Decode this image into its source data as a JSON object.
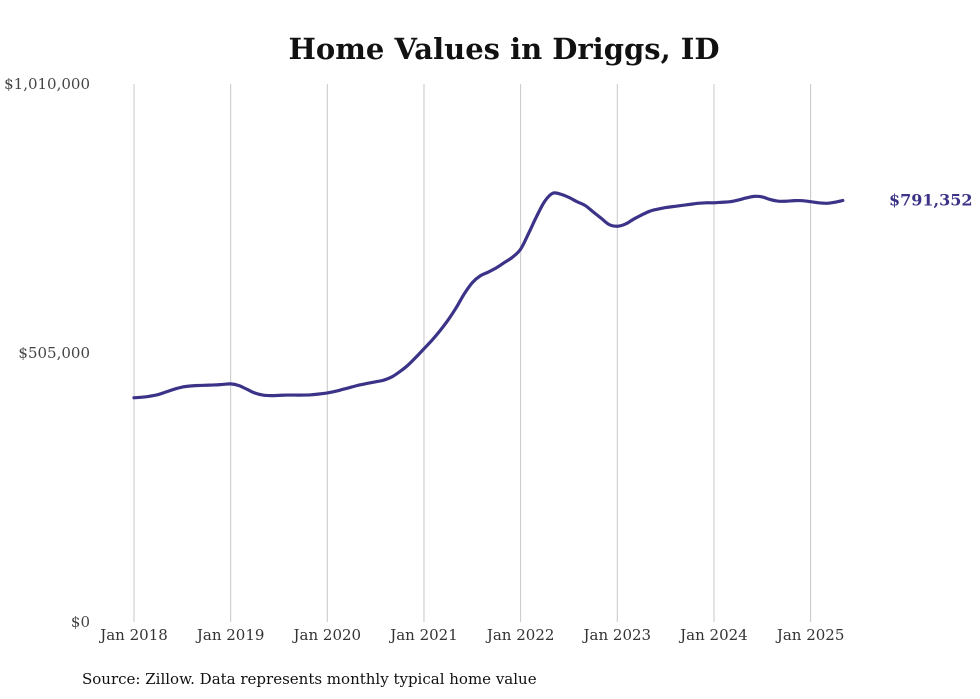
{
  "chart_data": {
    "type": "line",
    "title": "Home Values in Driggs, ID",
    "source": "Source: Zillow. Data represents monthly typical home value",
    "ylim": [
      0,
      1010000
    ],
    "yticks": [
      {
        "value": 0,
        "label": "$0"
      },
      {
        "value": 505000,
        "label": "$505,000"
      },
      {
        "value": 1010000,
        "label": "$1,010,000"
      }
    ],
    "xticks": [
      "Jan 2018",
      "Jan 2019",
      "Jan 2020",
      "Jan 2021",
      "Jan 2022",
      "Jan 2023",
      "Jan 2024",
      "Jan 2025"
    ],
    "grid": "vertical",
    "line_color": "#3b3388",
    "end_label": "$791,352",
    "series": [
      {
        "name": "Typical home value",
        "start": "Jan 2018",
        "frequency": "monthly",
        "values": [
          421000,
          422000,
          424000,
          427000,
          432000,
          437000,
          441000,
          443000,
          444000,
          444500,
          445000,
          446000,
          447000,
          444000,
          437000,
          430000,
          426000,
          425000,
          425500,
          426000,
          426000,
          426000,
          426500,
          428000,
          430000,
          433000,
          437000,
          441000,
          445000,
          448000,
          451000,
          454000,
          460000,
          470000,
          482000,
          497000,
          513000,
          529000,
          547000,
          567000,
          590000,
          616000,
          637000,
          650000,
          657000,
          665000,
          675000,
          685000,
          700000,
          730000,
          762000,
          790000,
          805000,
          803000,
          797000,
          789000,
          782000,
          770000,
          758000,
          746000,
          743000,
          747000,
          756000,
          764000,
          771000,
          775000,
          778000,
          780000,
          782000,
          784000,
          786000,
          787000,
          787000,
          788000,
          789000,
          792000,
          796000,
          799000,
          798000,
          793000,
          790000,
          790000,
          791000,
          791000,
          789000,
          787000,
          786000,
          788000,
          791352
        ]
      }
    ]
  }
}
